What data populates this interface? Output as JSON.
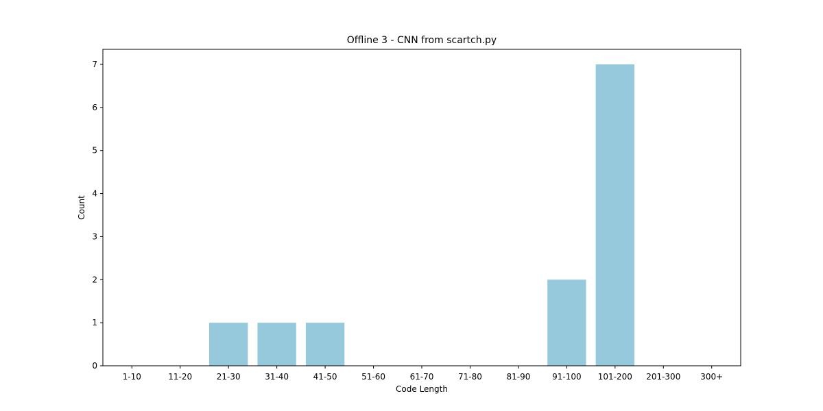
{
  "chart_data": {
    "type": "bar",
    "title": "Offline 3 - CNN from scartch.py",
    "xlabel": "Code Length",
    "ylabel": "Count",
    "categories": [
      "1-10",
      "11-20",
      "21-30",
      "31-40",
      "41-50",
      "51-60",
      "61-70",
      "71-80",
      "81-90",
      "91-100",
      "101-200",
      "201-300",
      "300+"
    ],
    "values": [
      0,
      0,
      1,
      1,
      1,
      0,
      0,
      0,
      0,
      2,
      7,
      0,
      0
    ],
    "ylim": [
      0,
      7.35
    ],
    "yticks": [
      0,
      1,
      2,
      3,
      4,
      5,
      6,
      7
    ],
    "grid": false,
    "bar_color": "#96c9dc"
  }
}
